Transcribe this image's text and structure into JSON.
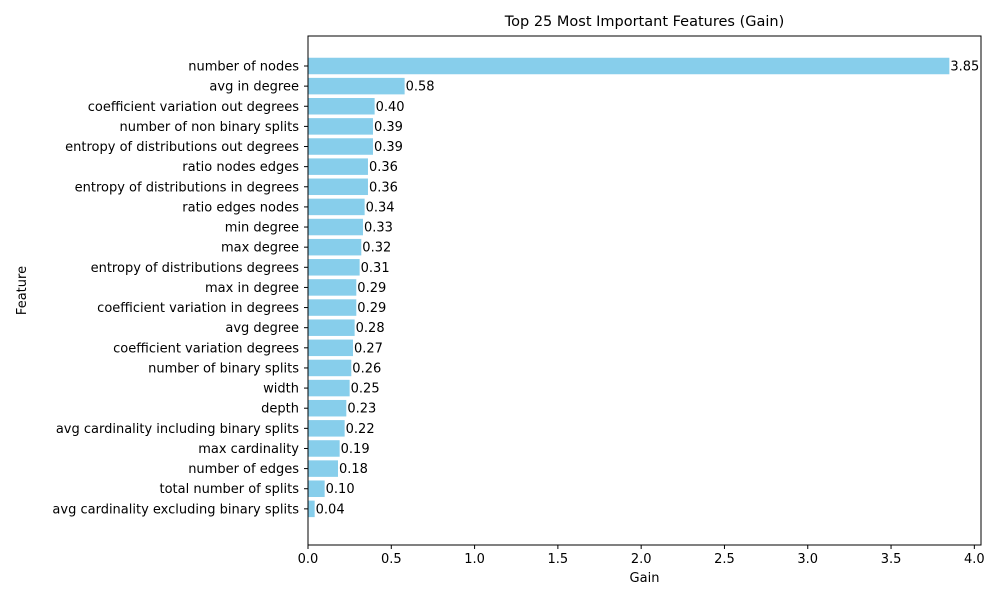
{
  "chart_data": {
    "type": "bar",
    "orientation": "horizontal",
    "title": "Top 25 Most Important Features (Gain)",
    "xlabel": "Gain",
    "ylabel": "Feature",
    "xlim": [
      0,
      4.04
    ],
    "xticks": [
      0.0,
      0.5,
      1.0,
      1.5,
      2.0,
      2.5,
      3.0,
      3.5,
      4.0
    ],
    "xtick_labels": [
      "0.0",
      "0.5",
      "1.0",
      "1.5",
      "2.0",
      "2.5",
      "3.0",
      "3.5",
      "4.0"
    ],
    "grid": false,
    "bar_color": "#87CEEB",
    "categories": [
      "number of nodes",
      "avg in degree",
      "coefficient variation out degrees",
      "number of non binary splits",
      "entropy of distributions out degrees",
      "ratio nodes edges",
      "entropy of distributions in degrees",
      "ratio edges nodes",
      "min degree",
      "max degree",
      "entropy of distributions degrees",
      "max in degree",
      "coefficient variation in degrees",
      "avg degree",
      "coefficient variation degrees",
      "number of binary splits",
      "width",
      "depth",
      "avg cardinality including binary splits",
      "max cardinality",
      "number of edges",
      "total number of splits",
      "avg cardinality excluding binary splits"
    ],
    "values": [
      3.85,
      0.58,
      0.4,
      0.39,
      0.39,
      0.36,
      0.36,
      0.34,
      0.33,
      0.32,
      0.31,
      0.29,
      0.29,
      0.28,
      0.27,
      0.26,
      0.25,
      0.23,
      0.22,
      0.19,
      0.18,
      0.1,
      0.04
    ],
    "value_labels": [
      "3.85",
      "0.58",
      "0.40",
      "0.39",
      "0.39",
      "0.36",
      "0.36",
      "0.34",
      "0.33",
      "0.32",
      "0.31",
      "0.29",
      "0.29",
      "0.28",
      "0.27",
      "0.26",
      "0.25",
      "0.23",
      "0.22",
      "0.19",
      "0.18",
      "0.10",
      "0.04"
    ]
  }
}
